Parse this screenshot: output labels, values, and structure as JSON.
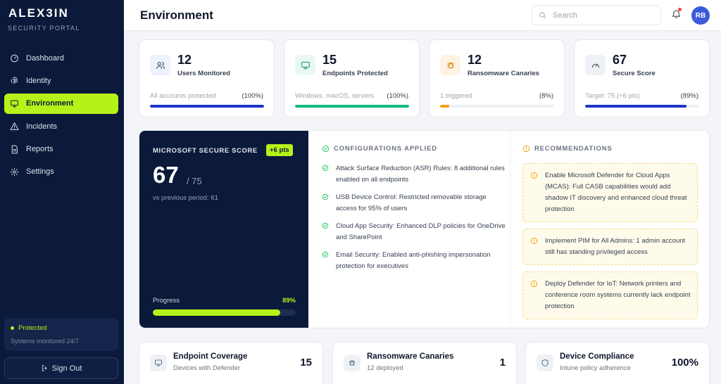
{
  "brand": {
    "logo": "ALEX3IN",
    "subtitle": "SECURITY PORTAL"
  },
  "sidebar": {
    "items": [
      {
        "label": "Dashboard",
        "icon": "dashboard-icon"
      },
      {
        "label": "Identity",
        "icon": "fingerprint-icon"
      },
      {
        "label": "Environment",
        "icon": "monitor-icon",
        "active": true
      },
      {
        "label": "Incidents",
        "icon": "alert-triangle-icon"
      },
      {
        "label": "Reports",
        "icon": "document-icon"
      },
      {
        "label": "Settings",
        "icon": "gear-icon"
      }
    ],
    "status": {
      "label": "Protected",
      "sub": "Systems monitored 24/7"
    },
    "signout_label": "Sign Out"
  },
  "header": {
    "title": "Environment",
    "search_placeholder": "Search",
    "avatar_initials": "RB"
  },
  "stats": [
    {
      "value": "12",
      "label": "Users Monitored",
      "note": "All accounts protected",
      "pct": "(100%)",
      "progress": 1.0,
      "color": "#1d35c9",
      "icon": "users-icon"
    },
    {
      "value": "15",
      "label": "Endpoints Protected",
      "note": "Windows, macOS, servers",
      "pct": "(100%)",
      "progress": 1.0,
      "color": "#10b981",
      "icon": "monitor-icon"
    },
    {
      "value": "12",
      "label": "Ransomware Canaries",
      "note": "1 triggered",
      "pct": "(8%)",
      "progress": 0.08,
      "color": "#f59e0b",
      "icon": "bug-icon"
    },
    {
      "value": "67",
      "label": "Secure Score",
      "note": "Target: 75 (+6 pts)",
      "pct": "(89%)",
      "progress": 0.89,
      "color": "#1d35c9",
      "icon": "gauge-icon"
    }
  ],
  "secure_score": {
    "title": "MICROSOFT SECURE SCORE",
    "badge": "+6 pts",
    "score": "67",
    "total": "/ 75",
    "previous": "vs previous period: 61",
    "progress_label": "Progress",
    "progress_pct": "89%",
    "progress": 0.89
  },
  "configurations": {
    "heading": "CONFIGURATIONS APPLIED",
    "items": [
      "Attack Surface Reduction (ASR) Rules: 8 additional rules enabled on all endpoints",
      "USB Device Control: Restricted removable storage access for 95% of users",
      "Cloud App Security: Enhanced DLP policies for OneDrive and SharePoint",
      "Email Security: Enabled anti-phishing impersonation protection for executives"
    ]
  },
  "recommendations": {
    "heading": "RECOMMENDATIONS",
    "items": [
      "Enable Microsoft Defender for Cloud Apps (MCAS): Full CASB capabilities would add shadow IT discovery and enhanced cloud threat protection",
      "Implement PIM for All Admins: 1 admin account still has standing privileged access",
      "Deploy Defender for IoT: Network printers and conference room systems currently lack endpoint protection"
    ]
  },
  "bottom_cards": [
    {
      "title": "Endpoint Coverage",
      "sub": "Devices with Defender",
      "value": "15",
      "icon": "monitor-icon"
    },
    {
      "title": "Ransomware Canaries",
      "sub": "12 deployed",
      "value": "1",
      "icon": "bug-icon"
    },
    {
      "title": "Device Compliance",
      "sub": "Intune policy adherence",
      "value": "100%",
      "icon": "shield-icon"
    }
  ]
}
